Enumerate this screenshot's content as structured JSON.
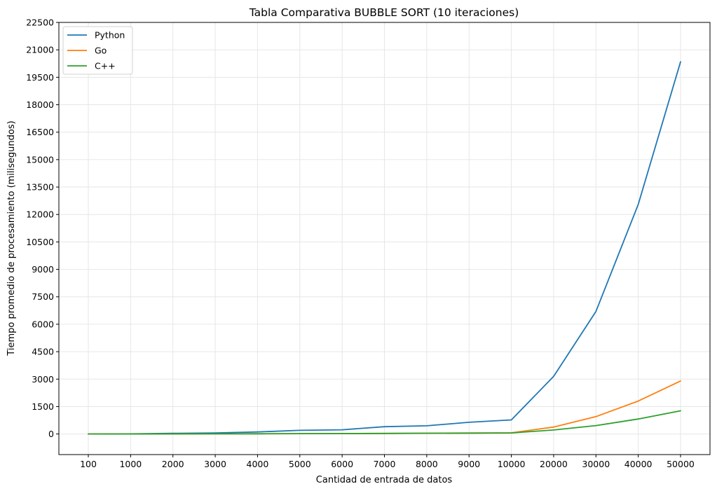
{
  "chart_data": {
    "type": "line",
    "title": "Tabla Comparativa BUBBLE SORT (10 iteraciones)",
    "xlabel": "Cantidad de entrada de datos",
    "ylabel": "Tiempo promedio de procesamiento (milisegundos)",
    "categories": [
      "100",
      "1000",
      "2000",
      "3000",
      "4000",
      "5000",
      "6000",
      "7000",
      "8000",
      "9000",
      "10000",
      "20000",
      "30000",
      "40000",
      "50000"
    ],
    "ylim": [
      -1125,
      22500
    ],
    "yticks": [
      0,
      1500,
      3000,
      4500,
      6000,
      7500,
      9000,
      10500,
      12000,
      13500,
      15000,
      16500,
      18000,
      19500,
      21000,
      22500
    ],
    "grid": true,
    "legend_position": "top-left",
    "series": [
      {
        "name": "Python",
        "color": "#1f77b4",
        "values": [
          0,
          10,
          35,
          60,
          110,
          200,
          230,
          400,
          450,
          640,
          770,
          3150,
          6700,
          12550,
          20350
        ]
      },
      {
        "name": "Go",
        "color": "#ff7f0e",
        "values": [
          0,
          2,
          5,
          8,
          12,
          18,
          25,
          33,
          42,
          52,
          65,
          380,
          950,
          1800,
          2900
        ]
      },
      {
        "name": "C++",
        "color": "#2ca02c",
        "values": [
          0,
          2,
          5,
          8,
          12,
          18,
          25,
          33,
          42,
          52,
          60,
          220,
          460,
          820,
          1270
        ]
      }
    ]
  }
}
